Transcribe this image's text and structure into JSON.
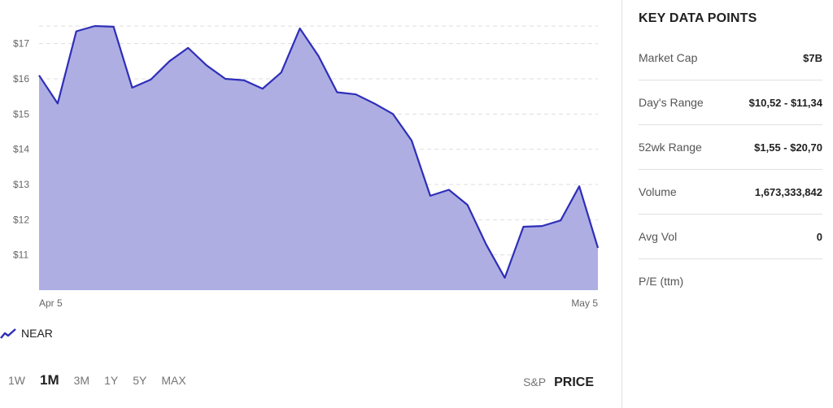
{
  "chart_data": {
    "type": "area",
    "series": [
      {
        "name": "NEAR",
        "values": [
          16.1,
          15.3,
          17.35,
          17.5,
          17.48,
          15.75,
          15.98,
          16.5,
          16.88,
          16.38,
          16.0,
          15.96,
          15.72,
          16.18,
          17.43,
          16.65,
          15.62,
          15.56,
          15.3,
          15.0,
          14.25,
          12.68,
          12.85,
          12.42,
          11.3,
          10.35,
          11.8,
          11.82,
          11.98,
          12.95,
          11.2
        ]
      }
    ],
    "x_tick_labels": [
      "Apr 5",
      "May 5"
    ],
    "y_ticks": [
      {
        "value": 11,
        "label": "$11"
      },
      {
        "value": 12,
        "label": "$12"
      },
      {
        "value": 13,
        "label": "$13"
      },
      {
        "value": 14,
        "label": "$14"
      },
      {
        "value": 15,
        "label": "$15"
      },
      {
        "value": 16,
        "label": "$16"
      },
      {
        "value": 17,
        "label": "$17"
      }
    ],
    "ylim": [
      10.0,
      17.5
    ],
    "grid": true,
    "legend": "bottom-left",
    "colors": {
      "line": "#2e2eb8",
      "fill": "#aeaee3",
      "grid": "#dddddd"
    }
  },
  "legend": {
    "label": "NEAR"
  },
  "range_selector": {
    "options": [
      "1W",
      "1M",
      "3M",
      "1Y",
      "5Y",
      "MAX"
    ],
    "selected": "1M"
  },
  "view_toggle": {
    "sp_label": "S&P",
    "price_label": "PRICE",
    "selected": "PRICE"
  },
  "key_data": {
    "title": "KEY DATA POINTS",
    "rows": [
      {
        "label": "Market Cap",
        "value": "$7B"
      },
      {
        "label": "Day's Range",
        "value": "$10,52 - $11,34"
      },
      {
        "label": "52wk Range",
        "value": "$1,55 - $20,70"
      },
      {
        "label": "Volume",
        "value": "1,673,333,842"
      },
      {
        "label": "Avg Vol",
        "value": "0"
      },
      {
        "label": "P/E (ttm)",
        "value": ""
      }
    ]
  }
}
